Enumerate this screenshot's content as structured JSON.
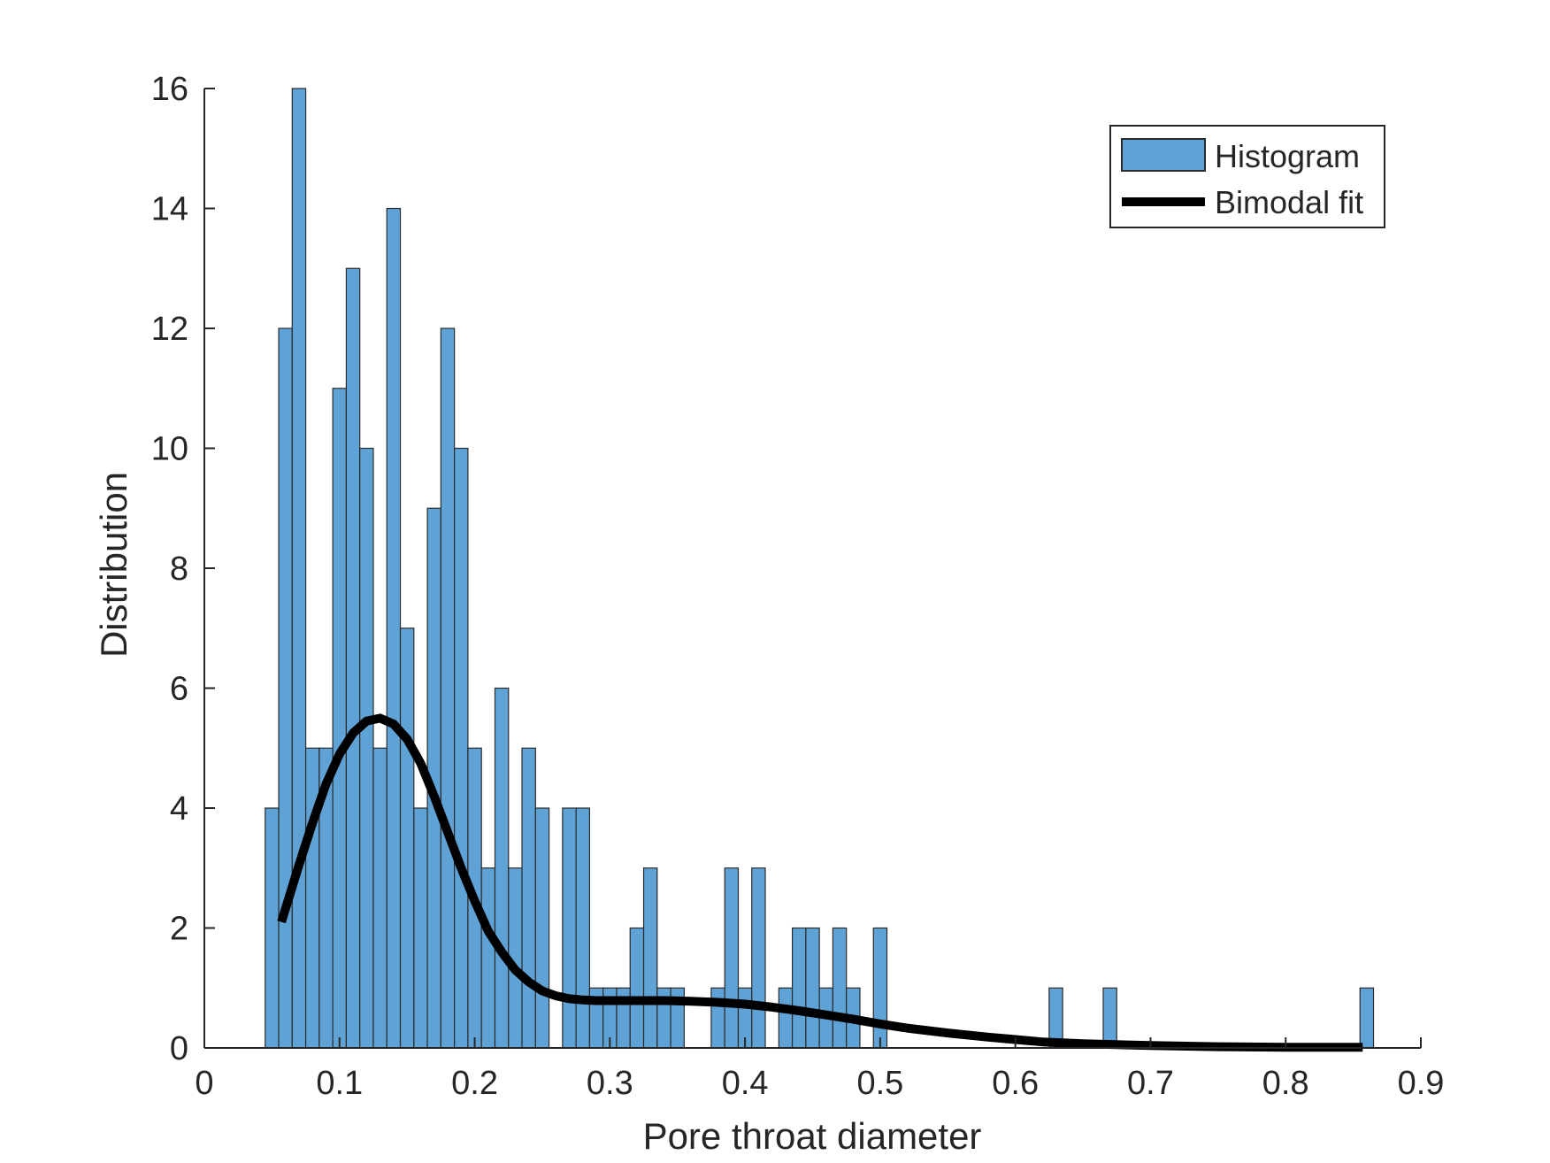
{
  "chart_data": {
    "type": "bar",
    "title": "",
    "xlabel": "Pore throat diameter",
    "ylabel": "Distribution",
    "xlim": [
      0,
      0.9
    ],
    "ylim": [
      0,
      16
    ],
    "xticks": [
      "0",
      "0.1",
      "0.2",
      "0.3",
      "0.4",
      "0.5",
      "0.6",
      "0.7",
      "0.8",
      "0.9"
    ],
    "yticks": [
      "0",
      "2",
      "4",
      "6",
      "8",
      "10",
      "12",
      "14",
      "16"
    ],
    "grid": false,
    "legend": {
      "location": "top-right",
      "entries": [
        "Histogram",
        "Bimodal fit"
      ]
    },
    "histogram": {
      "name": "Histogram",
      "color": "#5fa2d6",
      "edge_color": "#2b2b2b",
      "bin_width": 0.01,
      "bin_start": 0.045,
      "counts": [
        4,
        12,
        16,
        5,
        5,
        11,
        13,
        10,
        5,
        14,
        7,
        4,
        9,
        12,
        10,
        5,
        3,
        6,
        3,
        5,
        4,
        0,
        4,
        4,
        1,
        1,
        1,
        2,
        3,
        1,
        1,
        0,
        0,
        1,
        3,
        1,
        3,
        0,
        1,
        2,
        2,
        1,
        2,
        1,
        0,
        2,
        0,
        0,
        0,
        0,
        0,
        0,
        0,
        0,
        0,
        0,
        0,
        0,
        1,
        0,
        0,
        0,
        1,
        0,
        0,
        0,
        0,
        0,
        0,
        0,
        0,
        0,
        0,
        0,
        0,
        0,
        0,
        0,
        0,
        0,
        0,
        1
      ]
    },
    "series": [
      {
        "name": "Bimodal fit",
        "type": "line",
        "color": "#000000",
        "x": [
          0.057,
          0.07,
          0.08,
          0.09,
          0.1,
          0.11,
          0.12,
          0.13,
          0.14,
          0.15,
          0.16,
          0.17,
          0.18,
          0.19,
          0.2,
          0.21,
          0.22,
          0.23,
          0.24,
          0.25,
          0.26,
          0.27,
          0.28,
          0.29,
          0.3,
          0.32,
          0.34,
          0.36,
          0.38,
          0.4,
          0.42,
          0.44,
          0.46,
          0.48,
          0.5,
          0.52,
          0.55,
          0.58,
          0.6,
          0.62,
          0.65,
          0.7,
          0.75,
          0.8,
          0.857
        ],
        "y": [
          2.1,
          3.05,
          3.75,
          4.4,
          4.9,
          5.25,
          5.45,
          5.5,
          5.4,
          5.15,
          4.75,
          4.2,
          3.6,
          3.0,
          2.45,
          1.95,
          1.6,
          1.3,
          1.1,
          0.95,
          0.87,
          0.82,
          0.8,
          0.79,
          0.79,
          0.79,
          0.79,
          0.78,
          0.76,
          0.73,
          0.68,
          0.62,
          0.55,
          0.48,
          0.4,
          0.33,
          0.25,
          0.18,
          0.14,
          0.1,
          0.07,
          0.04,
          0.02,
          0.01,
          0.01
        ]
      }
    ]
  }
}
